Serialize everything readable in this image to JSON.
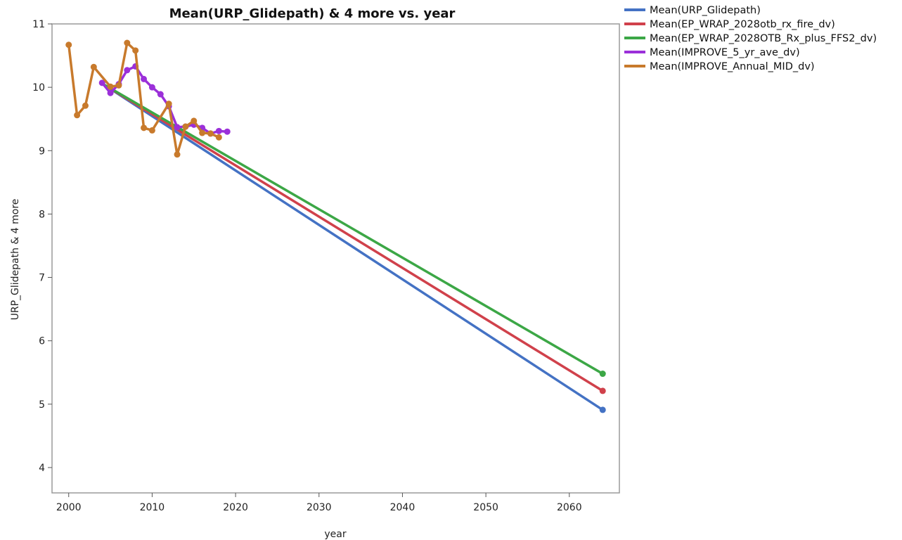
{
  "chart_data": {
    "type": "line",
    "title": "Mean(URP_Glidepath) & 4 more vs. year",
    "xlabel": "year",
    "ylabel": "URP_Glidepath & 4 more",
    "xlim": [
      1998,
      2066
    ],
    "ylim": [
      3.6,
      11
    ],
    "x_ticks": [
      2000,
      2010,
      2020,
      2030,
      2040,
      2050,
      2060
    ],
    "y_ticks": [
      4,
      5,
      6,
      7,
      8,
      9,
      10,
      11
    ],
    "grid": false,
    "legend_position": "top-right, outside plot",
    "series": [
      {
        "name": "Mean(URP_Glidepath)",
        "color": "#4472C4",
        "markers": "endpoints",
        "points": [
          [
            2004,
            10.06
          ],
          [
            2064,
            4.91
          ]
        ]
      },
      {
        "name": "Mean(EP_WRAP_2028otb_rx_fire_dv)",
        "color": "#D0414B",
        "markers": "endpoints",
        "points": [
          [
            2004,
            10.06
          ],
          [
            2064,
            5.21
          ]
        ]
      },
      {
        "name": "Mean(EP_WRAP_2028OTB_Rx_plus_FFS2_dv)",
        "color": "#3CA746",
        "markers": "endpoints",
        "points": [
          [
            2004,
            10.06
          ],
          [
            2064,
            5.48
          ]
        ]
      },
      {
        "name": "Mean(IMPROVE_5_yr_ave_dv)",
        "color": "#9B30D9",
        "markers": "all",
        "points": [
          [
            2004,
            10.07
          ],
          [
            2005,
            9.91
          ],
          [
            2006,
            10.05
          ],
          [
            2007,
            10.27
          ],
          [
            2008,
            10.33
          ],
          [
            2009,
            10.13
          ],
          [
            2010,
            10.0
          ],
          [
            2011,
            9.89
          ],
          [
            2012,
            9.7
          ],
          [
            2013,
            9.37
          ],
          [
            2014,
            9.38
          ],
          [
            2015,
            9.41
          ],
          [
            2016,
            9.36
          ],
          [
            2017,
            9.27
          ],
          [
            2018,
            9.31
          ],
          [
            2019,
            9.3
          ]
        ]
      },
      {
        "name": "Mean(IMPROVE_Annual_MID_dv)",
        "color": "#C87A2C",
        "markers": "all",
        "points": [
          [
            2000,
            10.67
          ],
          [
            2001,
            9.56
          ],
          [
            2002,
            9.71
          ],
          [
            2003,
            10.32
          ],
          [
            2005,
            10.01
          ],
          [
            2006,
            10.03
          ],
          [
            2007,
            10.7
          ],
          [
            2008,
            10.58
          ],
          [
            2009,
            9.36
          ],
          [
            2010,
            9.32
          ],
          [
            2012,
            9.74
          ],
          [
            2013,
            8.94
          ],
          [
            2014,
            9.38
          ],
          [
            2015,
            9.47
          ],
          [
            2016,
            9.28
          ],
          [
            2017,
            9.27
          ],
          [
            2018,
            9.21
          ]
        ]
      }
    ]
  }
}
